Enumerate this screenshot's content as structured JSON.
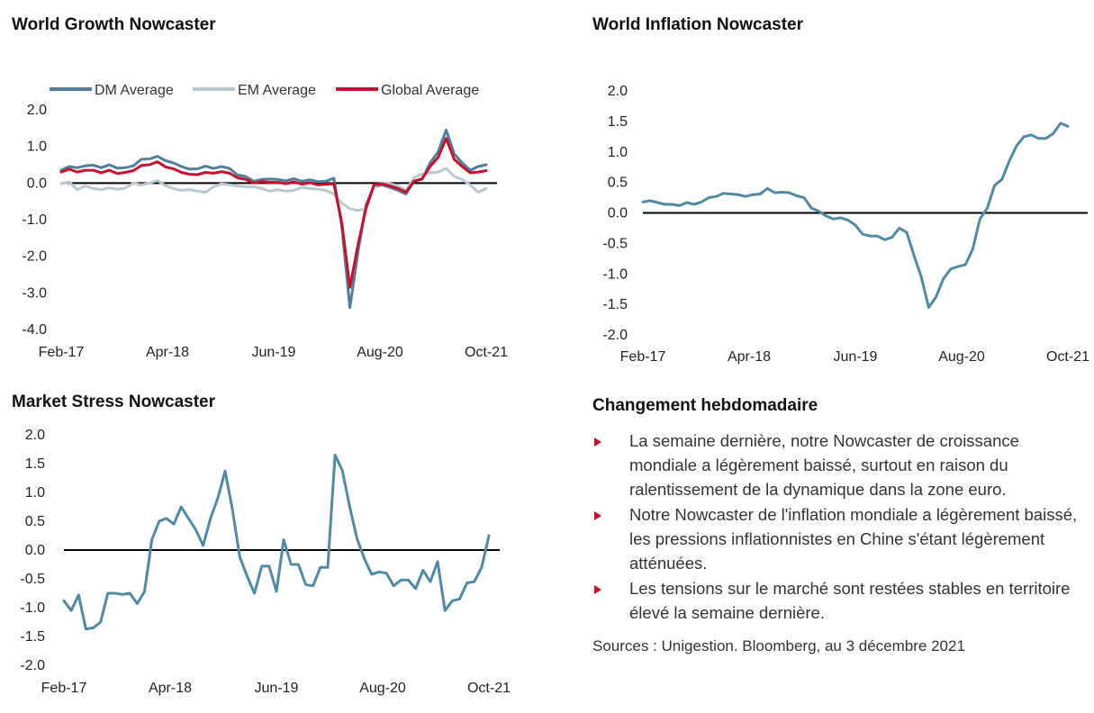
{
  "colors": {
    "dm": "#4f7f9a",
    "em": "#b8c8d1",
    "global": "#c8102e",
    "single": "#4f8aa3",
    "zero": "#000000",
    "bullet": "#c8102e"
  },
  "chart_data": [
    {
      "id": "growth",
      "type": "line",
      "title": "World Growth Nowcaster",
      "xlabel": "",
      "ylabel": "",
      "ylim": [
        -4.0,
        2.0
      ],
      "yticks": [
        "2.0",
        "1.0",
        "0.0",
        "-1.0",
        "-2.0",
        "-3.0",
        "-4.0"
      ],
      "yticks_values": [
        2,
        1,
        0,
        -1,
        -2,
        -3,
        -4
      ],
      "xlim": [
        0,
        56
      ],
      "xticks": [
        "Feb-17",
        "Apr-18",
        "Jun-19",
        "Aug-20",
        "Oct-21"
      ],
      "xticks_pos": [
        0,
        14,
        28,
        42,
        56
      ],
      "legend": "top",
      "series": [
        {
          "name": "DM Average",
          "color": "#4f7f9a",
          "values": [
            0.35,
            0.45,
            0.42,
            0.47,
            0.49,
            0.42,
            0.5,
            0.41,
            0.42,
            0.47,
            0.65,
            0.66,
            0.73,
            0.61,
            0.55,
            0.45,
            0.38,
            0.39,
            0.46,
            0.4,
            0.45,
            0.4,
            0.22,
            0.18,
            0.05,
            0.1,
            0.11,
            0.1,
            0.06,
            0.12,
            0.05,
            0.09,
            0.04,
            0.05,
            0.13,
            -1.2,
            -3.4,
            -1.9,
            -0.6,
            -0.1,
            -0.05,
            -0.12,
            -0.2,
            -0.3,
            0.05,
            0.1,
            0.55,
            0.85,
            1.45,
            0.8,
            0.55,
            0.35,
            0.45,
            0.5
          ]
        },
        {
          "name": "EM Average",
          "color": "#b8c8d1",
          "values": [
            -0.02,
            0.03,
            -0.18,
            -0.08,
            -0.15,
            -0.18,
            -0.13,
            -0.17,
            -0.14,
            0.0,
            -0.05,
            0.0,
            0.07,
            -0.07,
            -0.15,
            -0.2,
            -0.18,
            -0.22,
            -0.25,
            -0.1,
            -0.02,
            -0.05,
            -0.08,
            -0.1,
            -0.1,
            -0.15,
            -0.22,
            -0.18,
            -0.22,
            -0.2,
            -0.12,
            -0.15,
            -0.17,
            -0.2,
            -0.3,
            -0.55,
            -0.7,
            -0.75,
            -0.7,
            -0.1,
            0.0,
            -0.02,
            -0.08,
            -0.2,
            0.15,
            0.25,
            0.28,
            0.3,
            0.4,
            0.18,
            0.1,
            -0.05,
            -0.25,
            -0.15
          ]
        },
        {
          "name": "Global Average",
          "color": "#c8102e",
          "values": [
            0.3,
            0.38,
            0.3,
            0.35,
            0.35,
            0.28,
            0.35,
            0.26,
            0.29,
            0.34,
            0.48,
            0.5,
            0.58,
            0.44,
            0.39,
            0.29,
            0.24,
            0.23,
            0.29,
            0.27,
            0.31,
            0.27,
            0.14,
            0.1,
            0.0,
            0.04,
            0.02,
            0.02,
            -0.02,
            0.03,
            -0.03,
            0.01,
            -0.05,
            -0.03,
            -0.02,
            -1.1,
            -2.85,
            -1.7,
            -0.7,
            -0.05,
            -0.02,
            -0.08,
            -0.15,
            -0.25,
            0.05,
            0.12,
            0.45,
            0.7,
            1.22,
            0.65,
            0.45,
            0.28,
            0.3,
            0.34
          ]
        }
      ]
    },
    {
      "id": "inflation",
      "type": "line",
      "title": "World Inflation Nowcaster",
      "xlabel": "",
      "ylabel": "",
      "ylim": [
        -2.0,
        2.0
      ],
      "yticks": [
        "2.0",
        "1.5",
        "1.0",
        "0.5",
        "0.0",
        "-0.5",
        "-1.0",
        "-1.5",
        "-2.0"
      ],
      "yticks_values": [
        2,
        1.5,
        1,
        0.5,
        0,
        -0.5,
        -1,
        -1.5,
        -2
      ],
      "xlim": [
        0,
        56
      ],
      "xticks": [
        "Feb-17",
        "Apr-18",
        "Jun-19",
        "Aug-20",
        "Oct-21"
      ],
      "xticks_pos": [
        0,
        14,
        28,
        42,
        56
      ],
      "legend": "none",
      "series": [
        {
          "name": "",
          "color": "#4f8aa3",
          "values": [
            0.18,
            0.2,
            0.17,
            0.14,
            0.14,
            0.12,
            0.17,
            0.14,
            0.18,
            0.25,
            0.27,
            0.32,
            0.31,
            0.3,
            0.27,
            0.3,
            0.31,
            0.4,
            0.33,
            0.34,
            0.33,
            0.28,
            0.25,
            0.08,
            0.03,
            -0.05,
            -0.1,
            -0.08,
            -0.12,
            -0.2,
            -0.35,
            -0.38,
            -0.38,
            -0.44,
            -0.4,
            -0.25,
            -0.32,
            -0.7,
            -1.05,
            -1.55,
            -1.38,
            -1.08,
            -0.92,
            -0.88,
            -0.85,
            -0.6,
            -0.1,
            0.08,
            0.45,
            0.55,
            0.85,
            1.1,
            1.25,
            1.28,
            1.22,
            1.22,
            1.3,
            1.47,
            1.42
          ]
        }
      ]
    },
    {
      "id": "stress",
      "type": "line",
      "title": "Market Stress Nowcaster",
      "xlabel": "",
      "ylabel": "",
      "ylim": [
        -2.0,
        2.0
      ],
      "yticks": [
        "2.0",
        "1.5",
        "1.0",
        "0.5",
        "0.0",
        "-0.5",
        "-1.0",
        "-1.5",
        "-2.0"
      ],
      "yticks_values": [
        2,
        1.5,
        1,
        0.5,
        0,
        -0.5,
        -1,
        -1.5,
        -2
      ],
      "xlim": [
        0,
        56
      ],
      "xticks": [
        "Feb-17",
        "Apr-18",
        "Jun-19",
        "Aug-20",
        "Oct-21"
      ],
      "xticks_pos": [
        0,
        14,
        28,
        42,
        56
      ],
      "legend": "none",
      "series": [
        {
          "name": "",
          "color": "#4f8aa3",
          "values": [
            -0.88,
            -1.05,
            -0.78,
            -1.37,
            -1.35,
            -1.25,
            -0.75,
            -0.75,
            -0.77,
            -0.75,
            -0.93,
            -0.72,
            0.18,
            0.5,
            0.55,
            0.45,
            0.75,
            0.55,
            0.35,
            0.08,
            0.55,
            0.9,
            1.37,
            0.7,
            -0.12,
            -0.45,
            -0.75,
            -0.28,
            -0.28,
            -0.72,
            0.18,
            -0.25,
            -0.25,
            -0.6,
            -0.62,
            -0.3,
            -0.3,
            1.65,
            1.38,
            0.75,
            0.2,
            -0.15,
            -0.42,
            -0.38,
            -0.4,
            -0.62,
            -0.52,
            -0.52,
            -0.67,
            -0.35,
            -0.55,
            -0.2,
            -1.05,
            -0.88,
            -0.85,
            -0.57,
            -0.55,
            -0.3,
            0.25
          ]
        }
      ]
    }
  ],
  "summary": {
    "title": "Changement hebdomadaire",
    "bullets": [
      "La semaine dernière, notre Nowcaster de croissance mondiale a légèrement baissé, surtout en raison du ralentissement de la dynamique dans la zone euro.",
      "Notre Nowcaster de l'inflation mondiale a légèrement baissé, les pressions inflationnistes en Chine s'étant légèrement atténuées.",
      "Les tensions sur le marché sont restées stables en territoire élevé la semaine dernière."
    ],
    "sources": "Sources : Unigestion. Bloomberg, au 3 décembre 2021"
  }
}
